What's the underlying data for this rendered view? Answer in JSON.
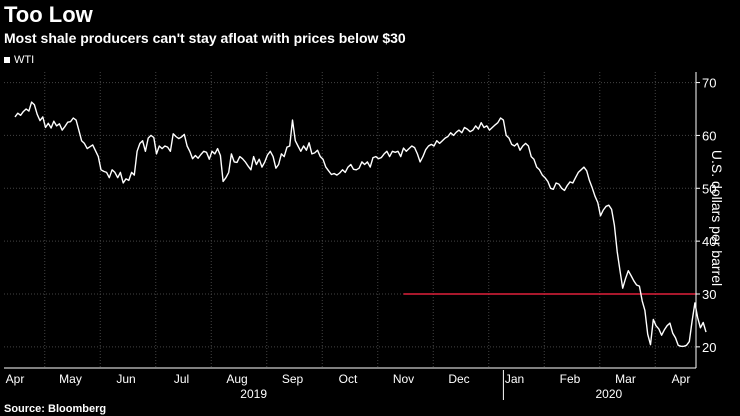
{
  "colors": {
    "background": "#000000",
    "text": "#ffffff",
    "grid": "#444444",
    "series": "#ffffff",
    "reference": "#e0203a"
  },
  "chart_data": {
    "type": "line",
    "title": "Too Low",
    "subtitle": "Most shale producers can't stay afloat with prices below $30",
    "source": "Source: Bloomberg",
    "ylabel": "U.S. dollars per barrel",
    "legend": [
      "WTI"
    ],
    "ylim": [
      16,
      72
    ],
    "yticks": [
      20,
      30,
      40,
      50,
      60,
      70
    ],
    "xlim": [
      0,
      12.25
    ],
    "x_ticks": [
      {
        "label": "Apr",
        "x": 0
      },
      {
        "label": "May",
        "x": 1
      },
      {
        "label": "Jun",
        "x": 2
      },
      {
        "label": "Jul",
        "x": 3
      },
      {
        "label": "Aug",
        "x": 4
      },
      {
        "label": "Sep",
        "x": 5
      },
      {
        "label": "Oct",
        "x": 6
      },
      {
        "label": "Nov",
        "x": 7
      },
      {
        "label": "Dec",
        "x": 8
      },
      {
        "label": "Jan",
        "x": 9
      },
      {
        "label": "Feb",
        "x": 10
      },
      {
        "label": "Mar",
        "x": 11
      },
      {
        "label": "Apr",
        "x": 12
      }
    ],
    "year_labels": [
      {
        "label": "2019",
        "x": 4.3
      },
      {
        "label": "2020",
        "x": 10.7
      }
    ],
    "year_divider_x": 8.8,
    "reference_line": {
      "value": 30,
      "x_start": 7.0,
      "x_end": 12.25
    },
    "series": [
      {
        "name": "WTI",
        "points": [
          [
            0.0,
            63.5
          ],
          [
            0.05,
            64.2
          ],
          [
            0.1,
            63.8
          ],
          [
            0.15,
            64.5
          ],
          [
            0.2,
            65.0
          ],
          [
            0.25,
            64.6
          ],
          [
            0.3,
            66.3
          ],
          [
            0.35,
            65.8
          ],
          [
            0.4,
            64.0
          ],
          [
            0.45,
            62.8
          ],
          [
            0.5,
            63.5
          ],
          [
            0.55,
            61.5
          ],
          [
            0.6,
            62.3
          ],
          [
            0.65,
            61.4
          ],
          [
            0.7,
            62.7
          ],
          [
            0.75,
            61.8
          ],
          [
            0.8,
            62.2
          ],
          [
            0.85,
            61.0
          ],
          [
            0.9,
            61.7
          ],
          [
            0.95,
            62.5
          ],
          [
            1.0,
            62.6
          ],
          [
            1.05,
            63.3
          ],
          [
            1.1,
            62.9
          ],
          [
            1.15,
            61.0
          ],
          [
            1.2,
            59.0
          ],
          [
            1.25,
            58.5
          ],
          [
            1.3,
            57.5
          ],
          [
            1.4,
            58.2
          ],
          [
            1.5,
            56.0
          ],
          [
            1.55,
            53.5
          ],
          [
            1.6,
            53.2
          ],
          [
            1.65,
            53.0
          ],
          [
            1.7,
            52.0
          ],
          [
            1.75,
            53.5
          ],
          [
            1.8,
            53.0
          ],
          [
            1.85,
            52.0
          ],
          [
            1.9,
            53.0
          ],
          [
            1.95,
            51.0
          ],
          [
            2.0,
            51.8
          ],
          [
            2.05,
            51.5
          ],
          [
            2.1,
            53.0
          ],
          [
            2.15,
            52.5
          ],
          [
            2.2,
            57.0
          ],
          [
            2.25,
            58.5
          ],
          [
            2.3,
            59.0
          ],
          [
            2.35,
            57.0
          ],
          [
            2.4,
            59.5
          ],
          [
            2.45,
            60.0
          ],
          [
            2.5,
            59.6
          ],
          [
            2.55,
            56.5
          ],
          [
            2.6,
            58.0
          ],
          [
            2.65,
            57.5
          ],
          [
            2.7,
            58.0
          ],
          [
            2.75,
            57.8
          ],
          [
            2.8,
            57.0
          ],
          [
            2.85,
            60.3
          ],
          [
            2.9,
            59.8
          ],
          [
            2.95,
            59.4
          ],
          [
            3.0,
            59.7
          ],
          [
            3.05,
            60.2
          ],
          [
            3.1,
            58.0
          ],
          [
            3.15,
            57.0
          ],
          [
            3.2,
            55.6
          ],
          [
            3.25,
            56.2
          ],
          [
            3.3,
            55.7
          ],
          [
            3.35,
            56.4
          ],
          [
            3.4,
            57.0
          ],
          [
            3.45,
            56.8
          ],
          [
            3.5,
            55.5
          ],
          [
            3.55,
            57.0
          ],
          [
            3.6,
            56.5
          ],
          [
            3.65,
            57.5
          ],
          [
            3.7,
            56.2
          ],
          [
            3.75,
            51.3
          ],
          [
            3.8,
            52.0
          ],
          [
            3.85,
            53.0
          ],
          [
            3.9,
            56.5
          ],
          [
            3.95,
            55.0
          ],
          [
            4.0,
            54.9
          ],
          [
            4.05,
            56.0
          ],
          [
            4.1,
            55.6
          ],
          [
            4.15,
            55.0
          ],
          [
            4.2,
            54.2
          ],
          [
            4.25,
            53.5
          ],
          [
            4.3,
            56.0
          ],
          [
            4.35,
            54.5
          ],
          [
            4.4,
            55.5
          ],
          [
            4.45,
            54.0
          ],
          [
            4.5,
            55.0
          ],
          [
            4.55,
            56.3
          ],
          [
            4.6,
            57.0
          ],
          [
            4.65,
            56.0
          ],
          [
            4.7,
            53.8
          ],
          [
            4.75,
            54.5
          ],
          [
            4.8,
            56.5
          ],
          [
            4.85,
            56.0
          ],
          [
            4.9,
            57.8
          ],
          [
            4.95,
            58.0
          ],
          [
            5.0,
            62.9
          ],
          [
            5.05,
            59.0
          ],
          [
            5.1,
            58.0
          ],
          [
            5.15,
            57.0
          ],
          [
            5.2,
            58.0
          ],
          [
            5.25,
            57.2
          ],
          [
            5.3,
            58.6
          ],
          [
            5.35,
            56.5
          ],
          [
            5.4,
            56.7
          ],
          [
            5.45,
            57.2
          ],
          [
            5.5,
            56.0
          ],
          [
            5.55,
            55.5
          ],
          [
            5.6,
            54.0
          ],
          [
            5.65,
            53.3
          ],
          [
            5.7,
            52.6
          ],
          [
            5.75,
            52.8
          ],
          [
            5.8,
            52.5
          ],
          [
            5.85,
            52.9
          ],
          [
            5.9,
            53.5
          ],
          [
            5.95,
            53.0
          ],
          [
            6.0,
            54.0
          ],
          [
            6.05,
            54.5
          ],
          [
            6.1,
            53.6
          ],
          [
            6.15,
            53.5
          ],
          [
            6.2,
            53.8
          ],
          [
            6.25,
            55.0
          ],
          [
            6.3,
            54.5
          ],
          [
            6.35,
            55.0
          ],
          [
            6.4,
            54.0
          ],
          [
            6.45,
            55.8
          ],
          [
            6.5,
            56.0
          ],
          [
            6.55,
            55.6
          ],
          [
            6.6,
            55.8
          ],
          [
            6.65,
            56.5
          ],
          [
            6.7,
            57.0
          ],
          [
            6.75,
            56.0
          ],
          [
            6.8,
            57.0
          ],
          [
            6.85,
            56.8
          ],
          [
            6.9,
            57.0
          ],
          [
            6.95,
            56.0
          ],
          [
            7.0,
            57.6
          ],
          [
            7.05,
            57.0
          ],
          [
            7.1,
            57.5
          ],
          [
            7.15,
            58.0
          ],
          [
            7.2,
            57.7
          ],
          [
            7.25,
            56.5
          ],
          [
            7.3,
            55.0
          ],
          [
            7.35,
            56.0
          ],
          [
            7.4,
            57.3
          ],
          [
            7.45,
            58.0
          ],
          [
            7.5,
            58.3
          ],
          [
            7.55,
            58.0
          ],
          [
            7.6,
            59.0
          ],
          [
            7.65,
            58.5
          ],
          [
            7.7,
            59.0
          ],
          [
            7.75,
            59.5
          ],
          [
            7.8,
            59.8
          ],
          [
            7.85,
            60.5
          ],
          [
            7.9,
            60.0
          ],
          [
            7.95,
            60.6
          ],
          [
            8.0,
            61.0
          ],
          [
            8.05,
            60.5
          ],
          [
            8.1,
            61.5
          ],
          [
            8.15,
            61.2
          ],
          [
            8.2,
            60.7
          ],
          [
            8.25,
            61.0
          ],
          [
            8.3,
            61.8
          ],
          [
            8.35,
            61.2
          ],
          [
            8.4,
            62.4
          ],
          [
            8.45,
            61.5
          ],
          [
            8.5,
            61.8
          ],
          [
            8.55,
            61.0
          ],
          [
            8.6,
            61.5
          ],
          [
            8.65,
            62.0
          ],
          [
            8.7,
            62.4
          ],
          [
            8.75,
            63.3
          ],
          [
            8.8,
            62.9
          ],
          [
            8.85,
            60.0
          ],
          [
            8.9,
            59.5
          ],
          [
            8.95,
            58.3
          ],
          [
            9.0,
            58.0
          ],
          [
            9.05,
            58.5
          ],
          [
            9.1,
            57.2
          ],
          [
            9.15,
            58.0
          ],
          [
            9.2,
            58.5
          ],
          [
            9.25,
            58.0
          ],
          [
            9.3,
            56.0
          ],
          [
            9.35,
            55.5
          ],
          [
            9.4,
            54.0
          ],
          [
            9.45,
            53.5
          ],
          [
            9.5,
            52.5
          ],
          [
            9.55,
            52.0
          ],
          [
            9.6,
            51.3
          ],
          [
            9.65,
            50.0
          ],
          [
            9.7,
            49.8
          ],
          [
            9.75,
            51.0
          ],
          [
            9.8,
            50.8
          ],
          [
            9.85,
            50.0
          ],
          [
            9.9,
            49.6
          ],
          [
            9.95,
            50.5
          ],
          [
            10.0,
            51.2
          ],
          [
            10.05,
            51.0
          ],
          [
            10.1,
            52.0
          ],
          [
            10.15,
            53.0
          ],
          [
            10.2,
            53.5
          ],
          [
            10.25,
            54.0
          ],
          [
            10.3,
            53.3
          ],
          [
            10.35,
            51.5
          ],
          [
            10.4,
            50.1
          ],
          [
            10.45,
            48.5
          ],
          [
            10.5,
            47.3
          ],
          [
            10.55,
            44.8
          ],
          [
            10.6,
            45.9
          ],
          [
            10.65,
            46.6
          ],
          [
            10.7,
            46.8
          ],
          [
            10.75,
            46.0
          ],
          [
            10.8,
            43.0
          ],
          [
            10.85,
            38.0
          ],
          [
            10.9,
            34.4
          ],
          [
            10.95,
            31.1
          ],
          [
            11.0,
            32.9
          ],
          [
            11.05,
            34.4
          ],
          [
            11.1,
            33.5
          ],
          [
            11.15,
            32.5
          ],
          [
            11.2,
            31.7
          ],
          [
            11.25,
            31.5
          ],
          [
            11.3,
            28.7
          ],
          [
            11.35,
            26.9
          ],
          [
            11.4,
            22.4
          ],
          [
            11.45,
            20.4
          ],
          [
            11.5,
            25.2
          ],
          [
            11.55,
            24.0
          ],
          [
            11.6,
            23.4
          ],
          [
            11.65,
            22.2
          ],
          [
            11.7,
            23.2
          ],
          [
            11.75,
            24.0
          ],
          [
            11.8,
            24.5
          ],
          [
            11.85,
            22.6
          ],
          [
            11.9,
            21.7
          ],
          [
            11.95,
            20.3
          ],
          [
            12.0,
            20.1
          ],
          [
            12.05,
            20.1
          ],
          [
            12.1,
            20.3
          ],
          [
            12.15,
            21.0
          ],
          [
            12.2,
            24.9
          ],
          [
            12.25,
            28.3
          ],
          [
            12.3,
            25.5
          ],
          [
            12.35,
            23.6
          ],
          [
            12.4,
            24.6
          ],
          [
            12.45,
            22.8
          ]
        ]
      }
    ]
  }
}
